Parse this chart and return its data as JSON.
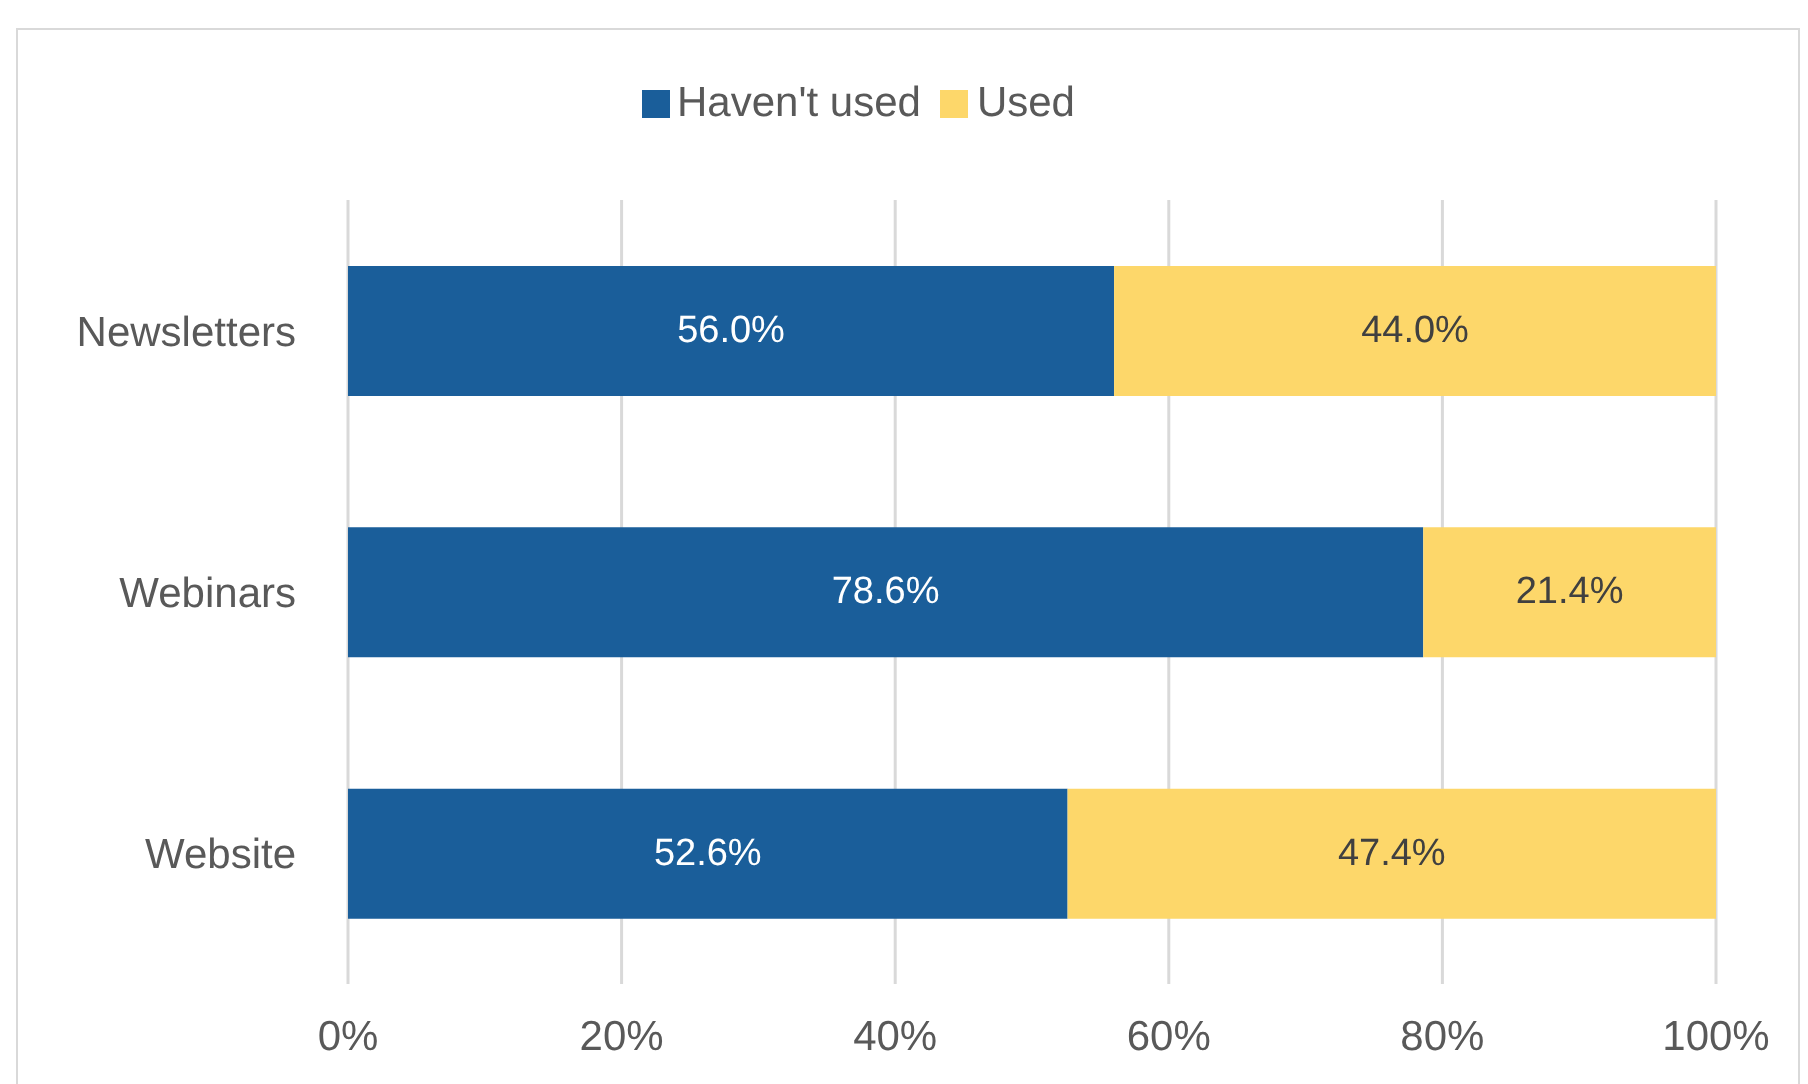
{
  "chart_data": {
    "type": "bar",
    "orientation": "horizontal",
    "stacked": true,
    "categories": [
      "Newsletters",
      "Webinars",
      "Website"
    ],
    "series": [
      {
        "name": "Haven't used",
        "color": "#1a5e9a",
        "values": [
          56.0,
          78.6,
          52.6
        ],
        "value_labels": [
          "56.0%",
          "78.6%",
          "52.6%"
        ]
      },
      {
        "name": "Used",
        "color": "#fdd76a",
        "values": [
          44.0,
          21.4,
          47.4
        ],
        "value_labels": [
          "44.0%",
          "21.4%",
          "47.4%"
        ]
      }
    ],
    "xlim": [
      0,
      100
    ],
    "xticks": [
      {
        "value": 0,
        "label": "0%"
      },
      {
        "value": 20,
        "label": "20%"
      },
      {
        "value": 40,
        "label": "40%"
      },
      {
        "value": 60,
        "label": "60%"
      },
      {
        "value": 80,
        "label": "80%"
      },
      {
        "value": 100,
        "label": "100%"
      }
    ],
    "grid": "x",
    "legend": "top"
  }
}
